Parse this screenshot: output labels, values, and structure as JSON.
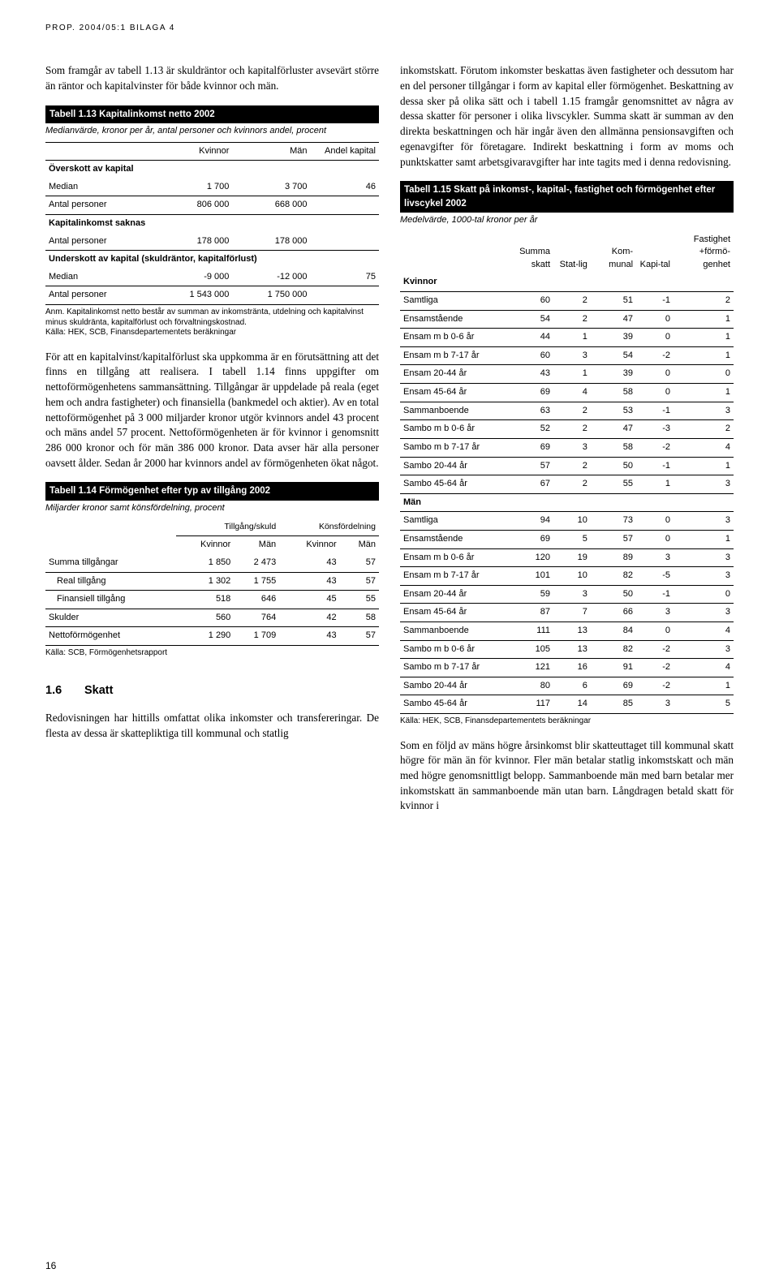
{
  "header": "PROP. 2004/05:1 BILAGA 4",
  "page_number": "16",
  "left": {
    "intro": "Som framgår av tabell 1.13 är skuldräntor och kapitalförluster avsevärt större än räntor och kapitalvinster för både kvinnor och män.",
    "t13": {
      "title": "Tabell 1.13 Kapitalinkomst netto 2002",
      "subtitle": "Medianvärde, kronor per år, antal personer och kvinnors andel, procent",
      "cols": [
        "",
        "Kvinnor",
        "Män",
        "Andel kapital"
      ],
      "sections": [
        {
          "head": "Överskott av kapital",
          "rows": [
            [
              "Median",
              "1 700",
              "3 700",
              "46"
            ],
            [
              "Antal personer",
              "806 000",
              "668 000",
              ""
            ]
          ]
        },
        {
          "head": "Kapitalinkomst saknas",
          "rows": [
            [
              "Antal personer",
              "178 000",
              "178 000",
              ""
            ]
          ]
        },
        {
          "head": "Underskott av kapital (skuldräntor, kapitalförlust)",
          "rows": [
            [
              "Median",
              "-9 000",
              "-12 000",
              "75"
            ],
            [
              "Antal personer",
              "1 543 000",
              "1 750 000",
              ""
            ]
          ]
        }
      ],
      "note": "Anm. Kapitalinkomst netto består av summan av inkomstränta, utdelning och kapitalvinst minus skuldränta, kapitalförlust och förvaltningskostnad.\nKälla: HEK, SCB, Finansdepartementets beräkningar"
    },
    "mid_para": "För att en kapitalvinst/kapitalförlust ska uppkomma är en förutsättning att det finns en tillgång att realisera. I tabell 1.14 finns uppgifter om nettoförmögenhetens sammansättning. Tillgångar är uppdelade på reala (eget hem och andra fastigheter) och finansiella (bankmedel och aktier). Av en total nettoförmögenhet på 3 000 miljarder kronor utgör kvinnors andel 43 procent och mäns andel 57 procent. Nettoförmögenheten är för kvinnor i genomsnitt 286 000 kronor och för män 386 000 kronor. Data avser här alla personer oavsett ålder. Sedan år 2000 har kvinnors andel av förmögenheten ökat något.",
    "t14": {
      "title": "Tabell 1.14 Förmögenhet efter typ av tillgång 2002",
      "subtitle": "Miljarder kronor samt könsfördelning, procent",
      "group_heads": [
        "Tillgång/skuld",
        "Könsfördelning"
      ],
      "cols": [
        "",
        "Kvinnor",
        "Män",
        "Kvinnor",
        "Män"
      ],
      "rows": [
        [
          "Summa tillgångar",
          "1 850",
          "2 473",
          "43",
          "57"
        ],
        [
          "Real  tillgång",
          "1 302",
          "1 755",
          "43",
          "57"
        ],
        [
          "Finansiell tillgång",
          "518",
          "646",
          "45",
          "55"
        ],
        [
          "Skulder",
          "560",
          "764",
          "42",
          "58"
        ],
        [
          "Nettoförmögenhet",
          "1 290",
          "1 709",
          "43",
          "57"
        ]
      ],
      "note": "Källa: SCB, Förmögenhetsrapport"
    },
    "sec_num": "1.6",
    "sec_title": "Skatt",
    "skatt_para": "Redovisningen har hittills omfattat olika inkomster och transfereringar. De flesta av dessa är skattepliktiga till kommunal och statlig"
  },
  "right": {
    "top_para": "inkomstskatt. Förutom inkomster beskattas även fastigheter och dessutom har en del personer tillgångar i form av kapital eller förmögenhet. Beskattning av dessa sker på olika sätt och i tabell 1.15 framgår genomsnittet av några av dessa skatter för personer i olika livscykler. Summa skatt är summan av den direkta beskattningen och här ingår även den allmänna pensionsavgiften och egenavgifter för företagare. Indirekt beskattning i form av moms och punktskatter samt arbetsgivaravgifter har inte tagits med i denna redovisning.",
    "t15": {
      "title": "Tabell 1.15 Skatt på inkomst-, kapital-, fastighet och förmögenhet efter livscykel 2002",
      "subtitle": "Medelvärde, 1000-tal kronor per år",
      "cols": [
        "",
        "Summa skatt",
        "Stat-lig",
        "Kom-munal",
        "Kapi-tal",
        "Fastighet +förmö-genhet"
      ],
      "kvinnor_head": "Kvinnor",
      "kvinnor_rows": [
        [
          "Samtliga",
          "60",
          "2",
          "51",
          "-1",
          "2"
        ],
        [
          "Ensamstående",
          "54",
          "2",
          "47",
          "0",
          "1"
        ],
        [
          "Ensam m b 0-6 år",
          "44",
          "1",
          "39",
          "0",
          "1"
        ],
        [
          "Ensam m b 7-17 år",
          "60",
          "3",
          "54",
          "-2",
          "1"
        ],
        [
          "Ensam 20-44 år",
          "43",
          "1",
          "39",
          "0",
          "0"
        ],
        [
          "Ensam 45-64 år",
          "69",
          "4",
          "58",
          "0",
          "1"
        ],
        [
          "Sammanboende",
          "63",
          "2",
          "53",
          "-1",
          "3"
        ],
        [
          "Sambo m b 0-6 år",
          "52",
          "2",
          "47",
          "-3",
          "2"
        ],
        [
          "Sambo m b 7-17 år",
          "69",
          "3",
          "58",
          "-2",
          "4"
        ],
        [
          "Sambo 20-44 år",
          "57",
          "2",
          "50",
          "-1",
          "1"
        ],
        [
          "Sambo 45-64 år",
          "67",
          "2",
          "55",
          "1",
          "3"
        ]
      ],
      "man_head": "Män",
      "man_rows": [
        [
          "Samtliga",
          "94",
          "10",
          "73",
          "0",
          "3"
        ],
        [
          "Ensamstående",
          "69",
          "5",
          "57",
          "0",
          "1"
        ],
        [
          "Ensam m b 0-6 år",
          "120",
          "19",
          "89",
          "3",
          "3"
        ],
        [
          "Ensam m b 7-17 år",
          "101",
          "10",
          "82",
          "-5",
          "3"
        ],
        [
          "Ensam 20-44 år",
          "59",
          "3",
          "50",
          "-1",
          "0"
        ],
        [
          "Ensam 45-64 år",
          "87",
          "7",
          "66",
          "3",
          "3"
        ],
        [
          "Sammanboende",
          "111",
          "13",
          "84",
          "0",
          "4"
        ],
        [
          "Sambo m b 0-6 år",
          "105",
          "13",
          "82",
          "-2",
          "3"
        ],
        [
          "Sambo m b 7-17 år",
          "121",
          "16",
          "91",
          "-2",
          "4"
        ],
        [
          "Sambo 20-44 år",
          "80",
          "6",
          "69",
          "-2",
          "1"
        ],
        [
          "Sambo 45-64 år",
          "117",
          "14",
          "85",
          "3",
          "5"
        ]
      ],
      "note": "Källa: HEK, SCB, Finansdepartementets beräkningar"
    },
    "bottom_para": "Som en följd av mäns högre årsinkomst blir skatteuttaget till kommunal skatt högre för män än för kvinnor. Fler män betalar statlig inkomstskatt och män med högre genomsnittligt belopp. Sammanboende män med barn betalar mer inkomstskatt än sammanboende män utan barn. Långdragen betald skatt för kvinnor i"
  }
}
